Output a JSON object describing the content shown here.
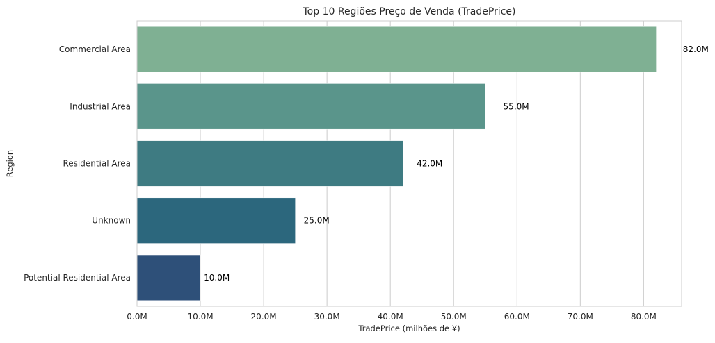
{
  "chart_data": {
    "type": "bar",
    "orientation": "horizontal",
    "title": "Top 10 Regiões Preço de Venda (TradePrice)",
    "xlabel": "TradePrice (milhões de ¥)",
    "ylabel": "Region",
    "categories": [
      "Commercial Area",
      "Industrial Area",
      "Residential Area",
      "Unknown",
      "Potential Residential Area"
    ],
    "values": [
      82.0,
      55.0,
      42.0,
      25.0,
      10.0
    ],
    "data_labels": [
      "82.0M",
      "55.0M",
      "42.0M",
      "25.0M",
      "10.0M"
    ],
    "bar_colors": [
      "#7fb093",
      "#5a958b",
      "#3e7b82",
      "#2c677d",
      "#2e5079"
    ],
    "xlim": [
      0,
      86
    ],
    "xticks": [
      0,
      10,
      20,
      30,
      40,
      50,
      60,
      70,
      80
    ],
    "xtick_labels": [
      "0.0M",
      "10.0M",
      "20.0M",
      "30.0M",
      "40.0M",
      "50.0M",
      "60.0M",
      "70.0M",
      "80.0M"
    ],
    "grid": "x-axis vertical lines",
    "legend": "none"
  }
}
